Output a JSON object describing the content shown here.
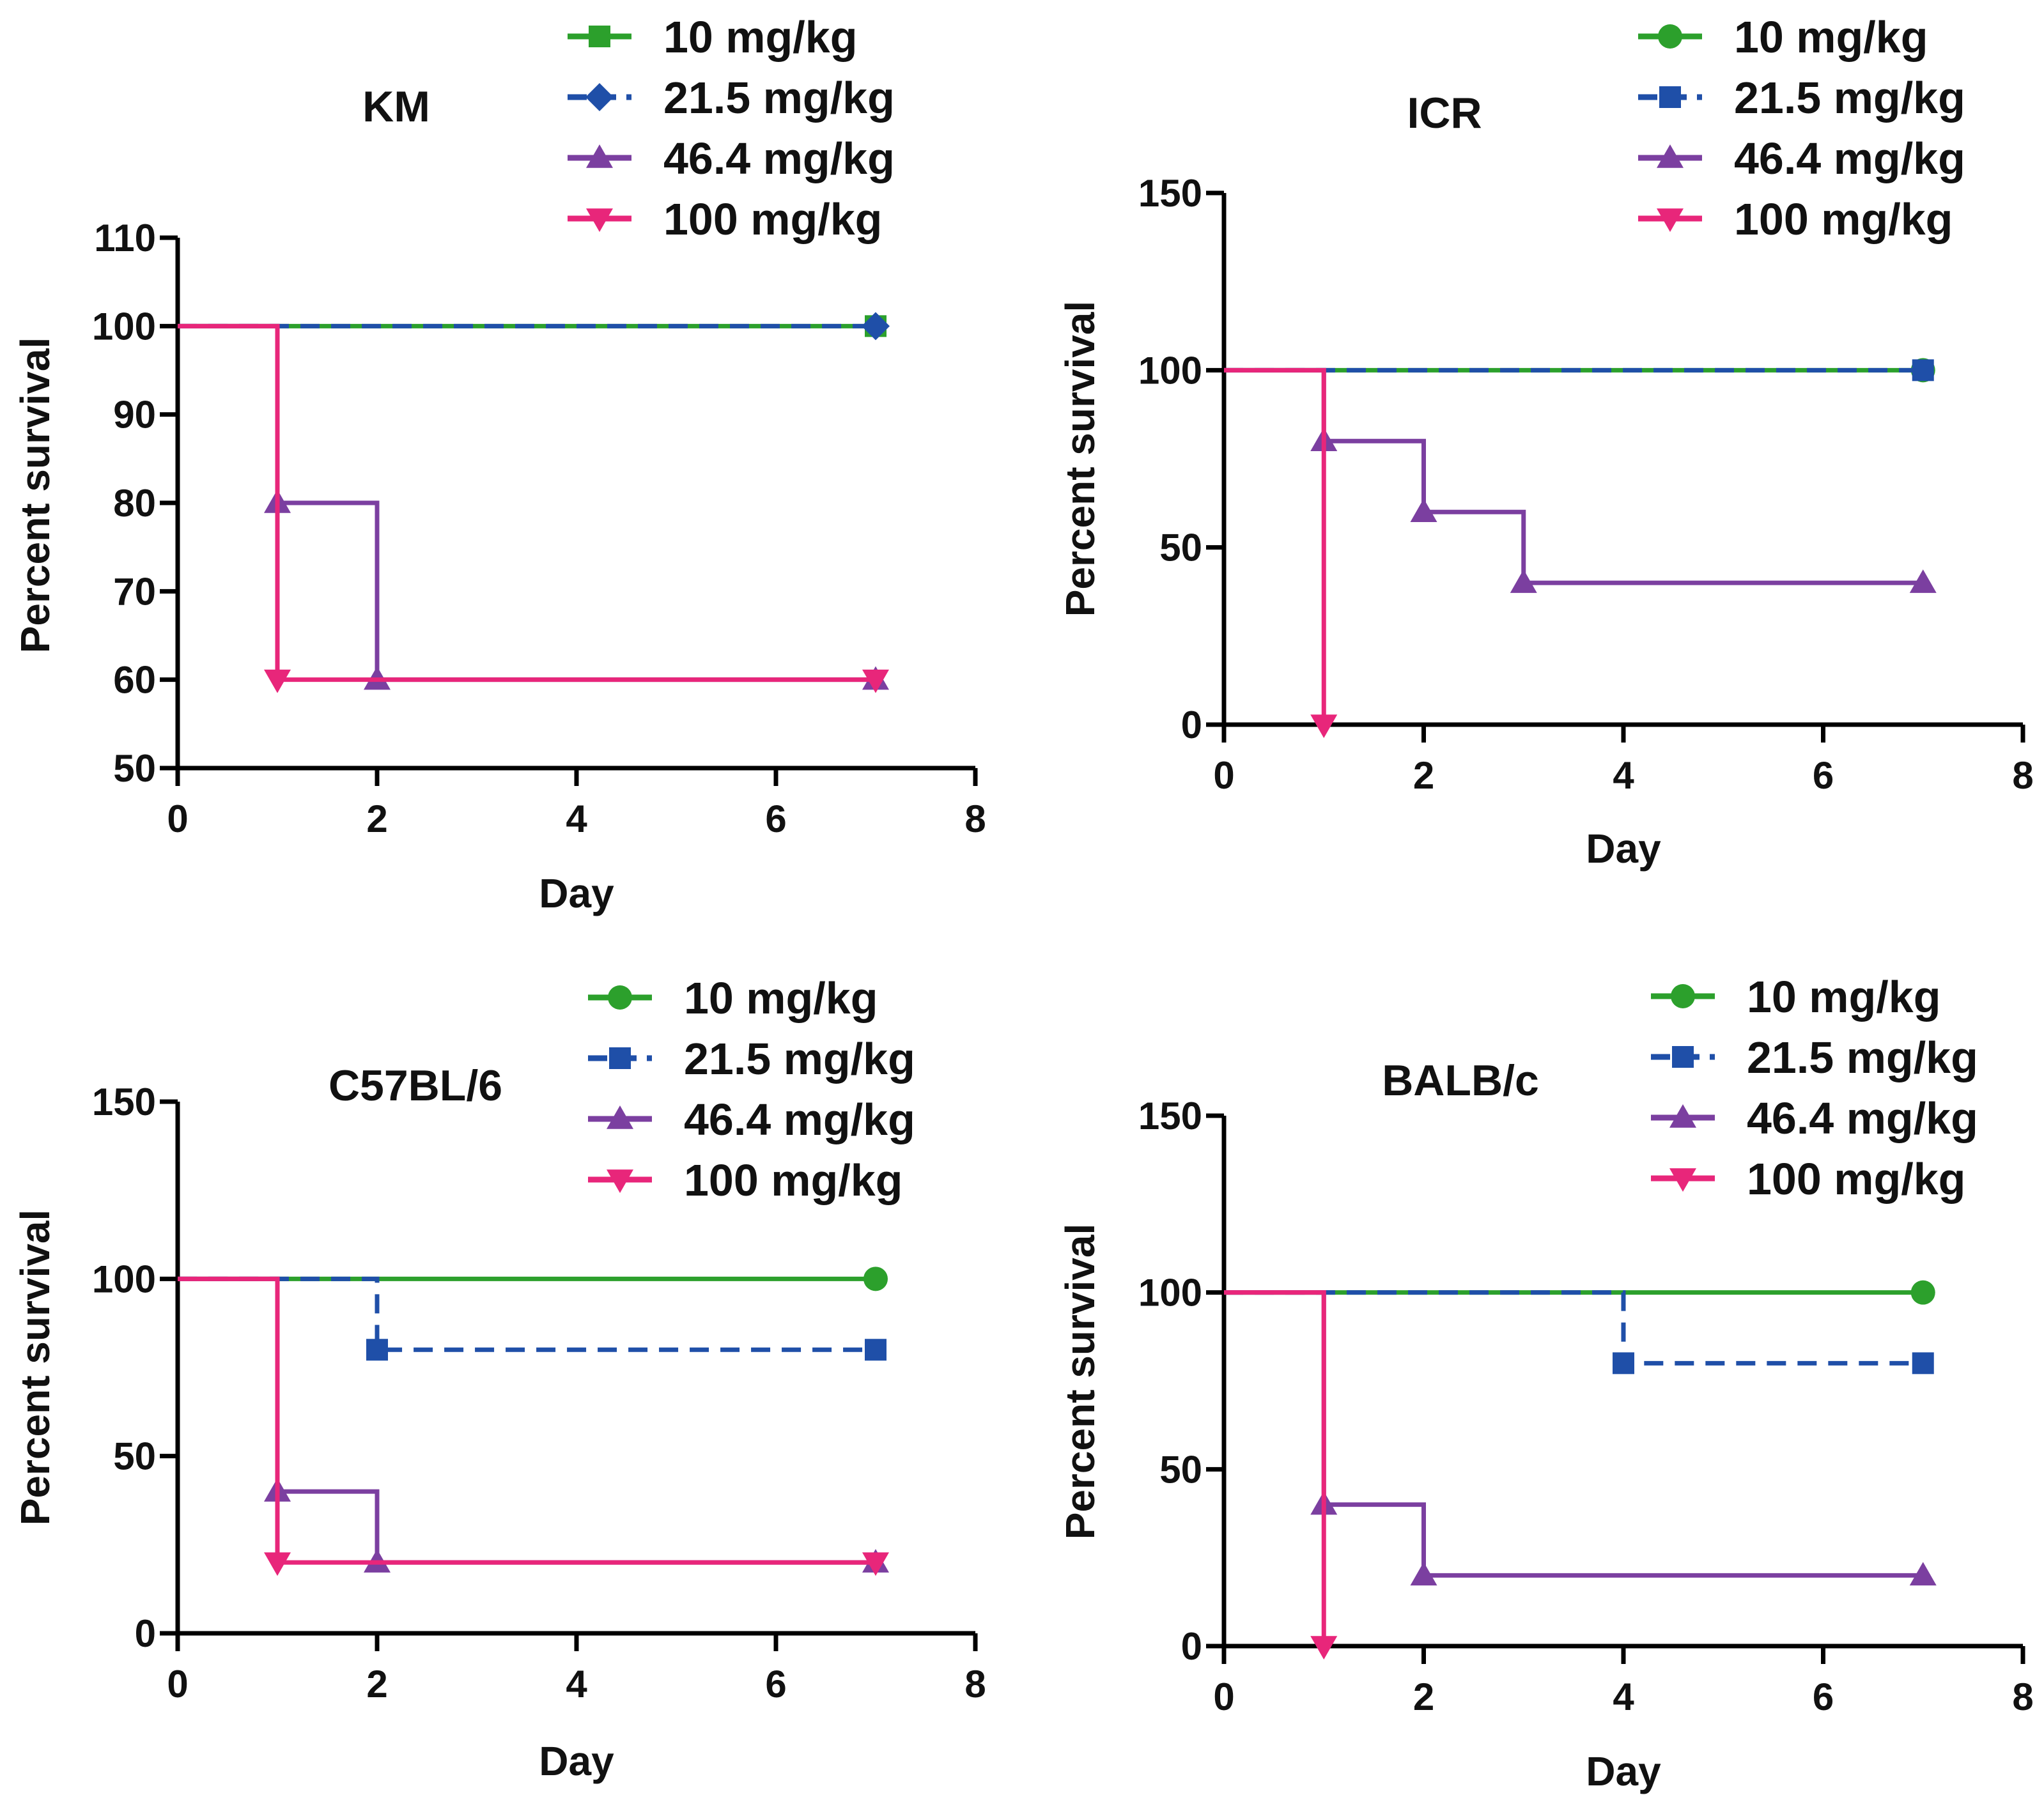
{
  "chart_data": [
    {
      "type": "line",
      "subtype": "survival-step",
      "title": "KM",
      "xlabel": "Day",
      "ylabel": "Percent survival",
      "xlim": [
        0,
        8
      ],
      "ylim": [
        50,
        110
      ],
      "xticks": [
        0,
        2,
        4,
        6,
        8
      ],
      "yticks": [
        50,
        60,
        70,
        80,
        90,
        100,
        110
      ],
      "grid": false,
      "legend_position": "top-right",
      "series": [
        {
          "name": "10 mg/kg",
          "color": "#2ca02c",
          "marker": "square",
          "dashed": false,
          "points": [
            [
              0,
              100
            ],
            [
              7,
              100
            ]
          ],
          "marker_points": [
            [
              7,
              100
            ]
          ]
        },
        {
          "name": "21.5 mg/kg",
          "color": "#1f4fa8",
          "marker": "diamond",
          "dashed": true,
          "points": [
            [
              0,
              100
            ],
            [
              7,
              100
            ]
          ],
          "marker_points": [
            [
              7,
              100
            ]
          ]
        },
        {
          "name": "46.4 mg/kg",
          "color": "#7b3fa0",
          "marker": "triangle-up",
          "dashed": false,
          "points": [
            [
              0,
              100
            ],
            [
              1,
              100
            ],
            [
              1,
              80
            ],
            [
              2,
              80
            ],
            [
              2,
              60
            ],
            [
              7,
              60
            ]
          ],
          "marker_points": [
            [
              1,
              80
            ],
            [
              2,
              60
            ],
            [
              7,
              60
            ]
          ]
        },
        {
          "name": "100 mg/kg",
          "color": "#e8267a",
          "marker": "triangle-down",
          "dashed": false,
          "points": [
            [
              0,
              100
            ],
            [
              1,
              100
            ],
            [
              1,
              60
            ],
            [
              7,
              60
            ]
          ],
          "marker_points": [
            [
              1,
              60
            ],
            [
              7,
              60
            ]
          ]
        }
      ]
    },
    {
      "type": "line",
      "subtype": "survival-step",
      "title": "ICR",
      "xlabel": "Day",
      "ylabel": "Percent survival",
      "xlim": [
        0,
        8
      ],
      "ylim": [
        0,
        150
      ],
      "xticks": [
        0,
        2,
        4,
        6,
        8
      ],
      "yticks": [
        0,
        50,
        100,
        150
      ],
      "grid": false,
      "legend_position": "top-right",
      "series": [
        {
          "name": "10 mg/kg",
          "color": "#2ca02c",
          "marker": "circle",
          "dashed": false,
          "points": [
            [
              0,
              100
            ],
            [
              7,
              100
            ]
          ],
          "marker_points": [
            [
              7,
              100
            ]
          ]
        },
        {
          "name": "21.5 mg/kg",
          "color": "#1f4fa8",
          "marker": "square",
          "dashed": true,
          "points": [
            [
              0,
              100
            ],
            [
              7,
              100
            ]
          ],
          "marker_points": [
            [
              7,
              100
            ]
          ]
        },
        {
          "name": "46.4 mg/kg",
          "color": "#7b3fa0",
          "marker": "triangle-up",
          "dashed": false,
          "points": [
            [
              0,
              100
            ],
            [
              1,
              100
            ],
            [
              1,
              80
            ],
            [
              2,
              80
            ],
            [
              2,
              60
            ],
            [
              3,
              60
            ],
            [
              3,
              40
            ],
            [
              7,
              40
            ]
          ],
          "marker_points": [
            [
              1,
              80
            ],
            [
              2,
              60
            ],
            [
              3,
              40
            ],
            [
              7,
              40
            ]
          ]
        },
        {
          "name": "100 mg/kg",
          "color": "#e8267a",
          "marker": "triangle-down",
          "dashed": false,
          "points": [
            [
              0,
              100
            ],
            [
              1,
              100
            ],
            [
              1,
              0
            ]
          ],
          "marker_points": [
            [
              1,
              0
            ]
          ]
        }
      ]
    },
    {
      "type": "line",
      "subtype": "survival-step",
      "title": "C57BL/6",
      "xlabel": "Day",
      "ylabel": "Percent survival",
      "xlim": [
        0,
        8
      ],
      "ylim": [
        0,
        150
      ],
      "xticks": [
        0,
        2,
        4,
        6,
        8
      ],
      "yticks": [
        0,
        50,
        100,
        150
      ],
      "grid": false,
      "legend_position": "top-right",
      "series": [
        {
          "name": "10 mg/kg",
          "color": "#2ca02c",
          "marker": "circle",
          "dashed": false,
          "points": [
            [
              0,
              100
            ],
            [
              7,
              100
            ]
          ],
          "marker_points": [
            [
              7,
              100
            ]
          ]
        },
        {
          "name": "21.5 mg/kg",
          "color": "#1f4fa8",
          "marker": "square",
          "dashed": true,
          "points": [
            [
              0,
              100
            ],
            [
              2,
              100
            ],
            [
              2,
              80
            ],
            [
              7,
              80
            ]
          ],
          "marker_points": [
            [
              2,
              80
            ],
            [
              7,
              80
            ]
          ]
        },
        {
          "name": "46.4 mg/kg",
          "color": "#7b3fa0",
          "marker": "triangle-up",
          "dashed": false,
          "points": [
            [
              0,
              100
            ],
            [
              1,
              100
            ],
            [
              1,
              40
            ],
            [
              2,
              40
            ],
            [
              2,
              20
            ],
            [
              7,
              20
            ]
          ],
          "marker_points": [
            [
              1,
              40
            ],
            [
              2,
              20
            ],
            [
              7,
              20
            ]
          ]
        },
        {
          "name": "100 mg/kg",
          "color": "#e8267a",
          "marker": "triangle-down",
          "dashed": false,
          "points": [
            [
              0,
              100
            ],
            [
              1,
              100
            ],
            [
              1,
              20
            ],
            [
              7,
              20
            ]
          ],
          "marker_points": [
            [
              1,
              20
            ],
            [
              7,
              20
            ]
          ]
        }
      ]
    },
    {
      "type": "line",
      "subtype": "survival-step",
      "title": "BALB/c",
      "xlabel": "Day",
      "ylabel": "Percent survival",
      "xlim": [
        0,
        8
      ],
      "ylim": [
        0,
        150
      ],
      "xticks": [
        0,
        2,
        4,
        6,
        8
      ],
      "yticks": [
        0,
        50,
        100,
        150
      ],
      "grid": false,
      "legend_position": "top-right",
      "series": [
        {
          "name": "10 mg/kg",
          "color": "#2ca02c",
          "marker": "circle",
          "dashed": false,
          "points": [
            [
              0,
              100
            ],
            [
              7,
              100
            ]
          ],
          "marker_points": [
            [
              7,
              100
            ]
          ]
        },
        {
          "name": "21.5 mg/kg",
          "color": "#1f4fa8",
          "marker": "square",
          "dashed": true,
          "points": [
            [
              0,
              100
            ],
            [
              4,
              100
            ],
            [
              4,
              80
            ],
            [
              7,
              80
            ]
          ],
          "marker_points": [
            [
              4,
              80
            ],
            [
              7,
              80
            ]
          ]
        },
        {
          "name": "46.4 mg/kg",
          "color": "#7b3fa0",
          "marker": "triangle-up",
          "dashed": false,
          "points": [
            [
              0,
              100
            ],
            [
              1,
              100
            ],
            [
              1,
              40
            ],
            [
              2,
              40
            ],
            [
              2,
              20
            ],
            [
              7,
              20
            ]
          ],
          "marker_points": [
            [
              1,
              40
            ],
            [
              2,
              20
            ],
            [
              7,
              20
            ]
          ]
        },
        {
          "name": "100 mg/kg",
          "color": "#e8267a",
          "marker": "triangle-down",
          "dashed": false,
          "points": [
            [
              0,
              100
            ],
            [
              1,
              100
            ],
            [
              1,
              0
            ]
          ],
          "marker_points": [
            [
              1,
              0
            ]
          ]
        }
      ]
    }
  ]
}
